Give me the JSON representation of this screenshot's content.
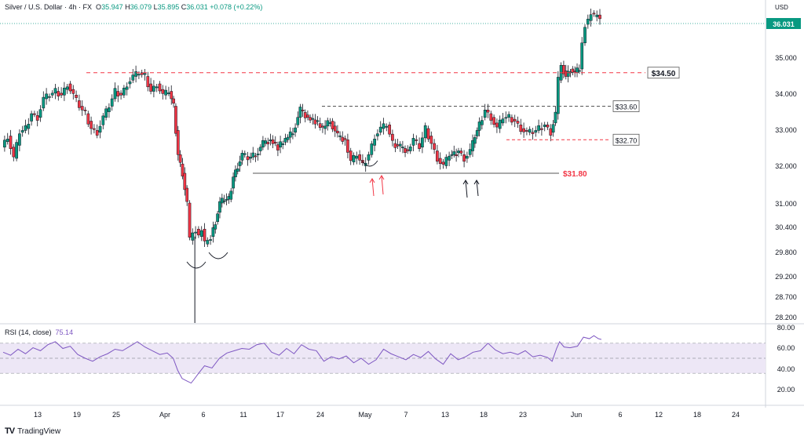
{
  "header": {
    "symbol": "Silver / U.S. Dollar · 4h · FX",
    "open_label": "O",
    "open": "35.947",
    "high_label": "H",
    "high": "36.079",
    "low_label": "L",
    "low": "35.895",
    "close_label": "C",
    "close": "36.031",
    "change": "+0.078 (+0.22%)"
  },
  "currency": "USD",
  "rsi_header": {
    "name": "RSI (14, close)",
    "value": "75.14"
  },
  "brand": {
    "logo": "TV",
    "name": "TradingView"
  },
  "colors": {
    "up": "#089981",
    "down": "#f23645",
    "candle_body": "#1a1a1a",
    "rsi_line": "#7e57c2",
    "rsi_band": "#ede7f6",
    "support": "#f23645",
    "last_price_bg": "#089981"
  },
  "chart_data": [
    {
      "type": "candlestick",
      "title": "Silver / U.S. Dollar · 4h · FX",
      "y_ticks": [
        "35.000",
        "34.000",
        "33.000",
        "32.000",
        "31.000",
        "30.400",
        "29.800",
        "29.200",
        "28.700",
        "28.200"
      ],
      "x_ticks": [
        "13",
        "19",
        "25",
        "Apr",
        "6",
        "11",
        "17",
        "24",
        "May",
        "7",
        "13",
        "18",
        "23",
        "Jun",
        "6",
        "12",
        "18",
        "24"
      ],
      "price_path": [
        [
          0,
          32.5
        ],
        [
          8,
          32.8
        ],
        [
          16,
          32.2
        ],
        [
          24,
          32.9
        ],
        [
          32,
          33.0
        ],
        [
          40,
          33.4
        ],
        [
          48,
          33.3
        ],
        [
          56,
          33.8
        ],
        [
          64,
          33.9
        ],
        [
          72,
          34.0
        ],
        [
          80,
          33.9
        ],
        [
          88,
          34.2
        ],
        [
          96,
          33.9
        ],
        [
          104,
          33.6
        ],
        [
          112,
          33.4
        ],
        [
          120,
          33.0
        ],
        [
          128,
          32.9
        ],
        [
          136,
          33.3
        ],
        [
          144,
          33.6
        ],
        [
          152,
          34.0
        ],
        [
          160,
          33.9
        ],
        [
          168,
          34.2
        ],
        [
          176,
          34.4
        ],
        [
          184,
          34.5
        ],
        [
          192,
          34.4
        ],
        [
          200,
          34.0
        ],
        [
          208,
          34.2
        ],
        [
          216,
          33.9
        ],
        [
          224,
          34.0
        ],
        [
          230,
          33.6
        ],
        [
          236,
          32.3
        ],
        [
          242,
          31.8
        ],
        [
          248,
          31.0
        ],
        [
          252,
          30.0
        ],
        [
          256,
          30.2
        ],
        [
          260,
          30.3
        ],
        [
          264,
          30.1
        ],
        [
          268,
          30.3
        ],
        [
          272,
          29.9
        ],
        [
          276,
          30.0
        ],
        [
          280,
          30.1
        ],
        [
          286,
          30.5
        ],
        [
          292,
          31.0
        ],
        [
          298,
          31.1
        ],
        [
          304,
          31.1
        ],
        [
          310,
          31.7
        ],
        [
          316,
          32.0
        ],
        [
          322,
          32.3
        ],
        [
          330,
          32.2
        ],
        [
          340,
          32.3
        ],
        [
          350,
          32.6
        ],
        [
          360,
          32.7
        ],
        [
          370,
          32.5
        ],
        [
          380,
          32.7
        ],
        [
          390,
          32.9
        ],
        [
          400,
          33.5
        ],
        [
          410,
          33.3
        ],
        [
          420,
          33.2
        ],
        [
          430,
          33.0
        ],
        [
          440,
          33.2
        ],
        [
          450,
          32.8
        ],
        [
          460,
          32.7
        ],
        [
          468,
          32.1
        ],
        [
          476,
          32.3
        ],
        [
          484,
          32.0
        ],
        [
          492,
          32.3
        ],
        [
          500,
          32.8
        ],
        [
          508,
          33.0
        ],
        [
          516,
          33.1
        ],
        [
          524,
          32.6
        ],
        [
          534,
          32.5
        ],
        [
          544,
          32.4
        ],
        [
          552,
          32.7
        ],
        [
          560,
          32.5
        ],
        [
          568,
          33.0
        ],
        [
          576,
          32.6
        ],
        [
          584,
          32.2
        ],
        [
          592,
          32.0
        ],
        [
          600,
          32.3
        ],
        [
          606,
          32.3
        ],
        [
          612,
          32.4
        ],
        [
          620,
          32.2
        ],
        [
          628,
          32.4
        ],
        [
          634,
          32.8
        ],
        [
          640,
          33.1
        ],
        [
          648,
          33.5
        ],
        [
          656,
          33.3
        ],
        [
          664,
          33.0
        ],
        [
          672,
          33.3
        ],
        [
          680,
          33.3
        ],
        [
          688,
          33.2
        ],
        [
          696,
          33.0
        ],
        [
          704,
          32.9
        ],
        [
          712,
          32.9
        ],
        [
          720,
          33.0
        ],
        [
          728,
          33.1
        ],
        [
          736,
          32.9
        ],
        [
          742,
          33.4
        ],
        [
          746,
          34.3
        ],
        [
          750,
          34.7
        ],
        [
          756,
          34.4
        ],
        [
          762,
          34.6
        ],
        [
          768,
          34.5
        ],
        [
          774,
          34.6
        ],
        [
          778,
          35.3
        ],
        [
          782,
          35.8
        ],
        [
          786,
          35.9
        ],
        [
          790,
          36.1
        ],
        [
          794,
          36.0
        ],
        [
          798,
          36.05
        ],
        [
          802,
          36.03
        ]
      ],
      "last_price": "36.031",
      "levels": [
        {
          "value": 34.5,
          "label": "$34.50",
          "style": "dashed-red"
        },
        {
          "value": 33.6,
          "label": "$33.60",
          "style": "dashed-gray"
        },
        {
          "value": 32.7,
          "label": "$32.70",
          "style": "dashed-red"
        },
        {
          "value": 31.8,
          "label": "$31.80",
          "style": "solid-gray"
        }
      ]
    },
    {
      "type": "line",
      "title": "RSI (14, close)",
      "y_ticks": [
        "80.00",
        "60.00",
        "40.00",
        "20.00"
      ],
      "bands": [
        70,
        30
      ],
      "midline": 50,
      "series": [
        {
          "name": "RSI",
          "points": [
            [
              0,
              58
            ],
            [
              10,
              54
            ],
            [
              20,
              62
            ],
            [
              30,
              56
            ],
            [
              40,
              64
            ],
            [
              50,
              60
            ],
            [
              60,
              68
            ],
            [
              70,
              72
            ],
            [
              80,
              63
            ],
            [
              90,
              66
            ],
            [
              100,
              55
            ],
            [
              110,
              50
            ],
            [
              120,
              46
            ],
            [
              130,
              52
            ],
            [
              140,
              56
            ],
            [
              150,
              62
            ],
            [
              160,
              60
            ],
            [
              170,
              66
            ],
            [
              180,
              72
            ],
            [
              190,
              65
            ],
            [
              200,
              60
            ],
            [
              210,
              55
            ],
            [
              220,
              57
            ],
            [
              228,
              50
            ],
            [
              234,
              34
            ],
            [
              240,
              23
            ],
            [
              246,
              20
            ],
            [
              252,
              17
            ],
            [
              256,
              22
            ],
            [
              262,
              30
            ],
            [
              270,
              40
            ],
            [
              280,
              37
            ],
            [
              290,
              50
            ],
            [
              300,
              57
            ],
            [
              310,
              60
            ],
            [
              320,
              63
            ],
            [
              330,
              62
            ],
            [
              340,
              68
            ],
            [
              350,
              70
            ],
            [
              360,
              58
            ],
            [
              370,
              54
            ],
            [
              380,
              63
            ],
            [
              390,
              56
            ],
            [
              400,
              68
            ],
            [
              410,
              62
            ],
            [
              420,
              60
            ],
            [
              430,
              46
            ],
            [
              440,
              52
            ],
            [
              450,
              49
            ],
            [
              460,
              53
            ],
            [
              470,
              44
            ],
            [
              480,
              50
            ],
            [
              490,
              42
            ],
            [
              500,
              48
            ],
            [
              510,
              62
            ],
            [
              520,
              56
            ],
            [
              530,
              52
            ],
            [
              540,
              48
            ],
            [
              550,
              55
            ],
            [
              560,
              51
            ],
            [
              570,
              59
            ],
            [
              580,
              49
            ],
            [
              590,
              42
            ],
            [
              600,
              56
            ],
            [
              610,
              48
            ],
            [
              620,
              52
            ],
            [
              630,
              58
            ],
            [
              640,
              60
            ],
            [
              650,
              70
            ],
            [
              660,
              61
            ],
            [
              670,
              56
            ],
            [
              680,
              58
            ],
            [
              690,
              55
            ],
            [
              700,
              60
            ],
            [
              710,
              52
            ],
            [
              720,
              54
            ],
            [
              730,
              51
            ],
            [
              736,
              46
            ],
            [
              742,
              63
            ],
            [
              746,
              72
            ],
            [
              752,
              65
            ],
            [
              760,
              64
            ],
            [
              770,
              66
            ],
            [
              778,
              78
            ],
            [
              786,
              76
            ],
            [
              792,
              80
            ],
            [
              798,
              76
            ],
            [
              802,
              75
            ]
          ]
        }
      ]
    }
  ]
}
